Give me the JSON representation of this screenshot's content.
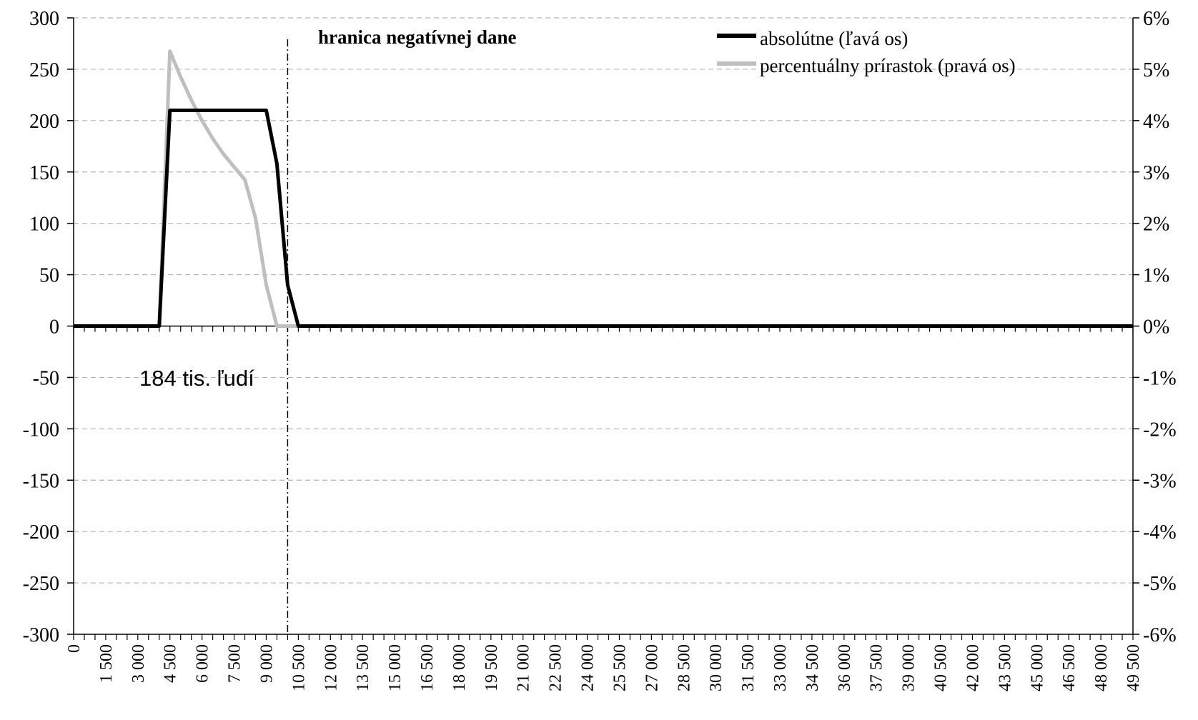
{
  "chart_data": {
    "type": "line",
    "title": "",
    "x": [
      0,
      500,
      1000,
      1500,
      2000,
      2500,
      3000,
      3500,
      4000,
      4500,
      5000,
      5500,
      6000,
      6500,
      7000,
      7500,
      8000,
      8500,
      9000,
      9500,
      10000,
      10500,
      11000,
      11500,
      12000,
      12500,
      13000,
      13500,
      14000,
      14500,
      15000,
      15500,
      16000,
      16500,
      17000,
      17500,
      18000,
      18500,
      19000,
      19500,
      20000,
      20500,
      21000,
      21500,
      22000,
      22500,
      23000,
      23500,
      24000,
      24500,
      25000,
      25500,
      26000,
      26500,
      27000,
      27500,
      28000,
      28500,
      29000,
      29500,
      30000,
      30500,
      31000,
      31500,
      32000,
      32500,
      33000,
      33500,
      34000,
      34500,
      35000,
      35500,
      36000,
      36500,
      37000,
      37500,
      38000,
      38500,
      39000,
      39500,
      40000,
      40500,
      41000,
      41500,
      42000,
      42500,
      43000,
      43500,
      44000,
      44500,
      45000,
      45500,
      46000,
      46500,
      47000,
      47500,
      48000,
      48500,
      49000,
      49500
    ],
    "x_tick_labels": [
      "0",
      "1 500",
      "3 000",
      "4 500",
      "6 000",
      "7 500",
      "9 000",
      "10 500",
      "12 000",
      "13 500",
      "15 000",
      "16 500",
      "18 000",
      "19 500",
      "21 000",
      "22 500",
      "24 000",
      "25 500",
      "27 000",
      "28 500",
      "30 000",
      "31 500",
      "33 000",
      "34 500",
      "36 000",
      "37 500",
      "39 000",
      "40 500",
      "42 000",
      "43 500",
      "45 000",
      "46 500",
      "48 000",
      "49 500"
    ],
    "y_left": {
      "range": [
        -300,
        300
      ],
      "ticks": [
        "300",
        "250",
        "200",
        "150",
        "100",
        "50",
        "0",
        "-50",
        "-100",
        "-150",
        "-200",
        "-250",
        "-300"
      ]
    },
    "y_right": {
      "range": [
        -6,
        6
      ],
      "ticks": [
        "6%",
        "5%",
        "4%",
        "3%",
        "2%",
        "1%",
        "0%",
        "-1%",
        "-2%",
        "-3%",
        "-4%",
        "-5%",
        "-6%"
      ]
    },
    "grid": "horizontal-dashed",
    "legend_position": "top-right",
    "series": [
      {
        "name": "absolútne (ľavá os)",
        "axis": "left",
        "color": "#000000",
        "values": [
          0,
          0,
          0,
          0,
          0,
          0,
          0,
          0,
          0,
          210,
          210,
          210,
          210,
          210,
          210,
          210,
          210,
          210,
          210,
          158,
          40,
          0,
          0,
          0,
          0,
          0,
          0,
          0,
          0,
          0,
          0,
          0,
          0,
          0,
          0,
          0,
          0,
          0,
          0,
          0,
          0,
          0,
          0,
          0,
          0,
          0,
          0,
          0,
          0,
          0,
          0,
          0,
          0,
          0,
          0,
          0,
          0,
          0,
          0,
          0,
          0,
          0,
          0,
          0,
          0,
          0,
          0,
          0,
          0,
          0,
          0,
          0,
          0,
          0,
          0,
          0,
          0,
          0,
          0,
          0,
          0,
          0,
          0,
          0,
          0,
          0,
          0,
          0,
          0,
          0,
          0,
          0,
          0,
          0,
          0,
          0,
          0,
          0,
          0,
          0
        ]
      },
      {
        "name": "percentuálny prírastok (pravá os)",
        "axis": "right",
        "color": "#bfbfbf",
        "values": [
          0,
          0,
          0,
          0,
          0,
          0,
          0,
          0,
          0,
          5.35,
          4.85,
          4.4,
          4.0,
          3.65,
          3.35,
          3.1,
          2.85,
          2.1,
          0.8,
          0,
          0,
          0,
          0,
          0,
          0,
          0,
          0,
          0,
          0,
          0,
          0,
          0,
          0,
          0,
          0,
          0,
          0,
          0,
          0,
          0,
          0,
          0,
          0,
          0,
          0,
          0,
          0,
          0,
          0,
          0,
          0,
          0,
          0,
          0,
          0,
          0,
          0,
          0,
          0,
          0,
          0,
          0,
          0,
          0,
          0,
          0,
          0,
          0,
          0,
          0,
          0,
          0,
          0,
          0,
          0,
          0,
          0,
          0,
          0,
          0,
          0,
          0,
          0,
          0,
          0,
          0,
          0,
          0,
          0,
          0,
          0,
          0,
          0,
          0,
          0,
          0,
          0,
          0,
          0,
          0
        ]
      }
    ],
    "vertical_line_x": 10000,
    "annotations": {
      "boundary_label": "hranica negatívnej dane",
      "count_label": "184 tis. ľudí"
    }
  }
}
